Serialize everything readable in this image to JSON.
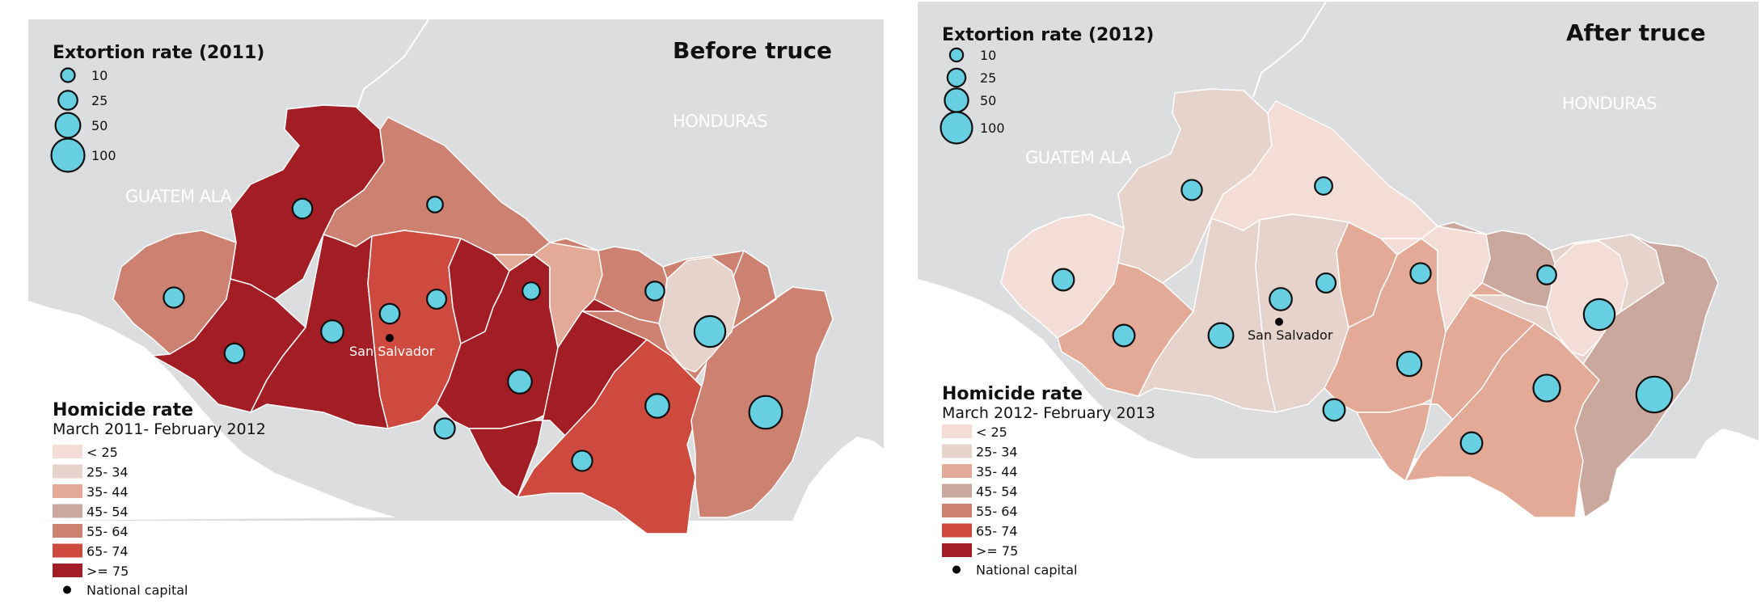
{
  "colors": {
    "background_land": "#dcdddf",
    "sea": "#ffffff",
    "bubble_fill": "#67cfe2",
    "bubble_stroke": "#111111",
    "capital_dot": "#000000"
  },
  "bubble_legend_values": [
    10,
    25,
    50,
    100
  ],
  "homicide_classes": [
    {
      "label": "< 25",
      "color": "#f3ddd6"
    },
    {
      "label": "25- 34",
      "color": "#e6d3cc"
    },
    {
      "label": "35- 44",
      "color": "#e4aa98"
    },
    {
      "label": "45- 54",
      "color": "#cba89d"
    },
    {
      "label": "55- 64",
      "color": "#cd8170"
    },
    {
      "label": "65- 74",
      "color": "#cf4a3e"
    },
    {
      "label": ">= 75",
      "color": "#a31e24"
    }
  ],
  "national_capital_label": "National capital",
  "panels": [
    {
      "title": "Before truce",
      "extortion_title": "Extortion rate (2011)",
      "homicide_title": "Homicide rate",
      "homicide_period": "March 2011- February 2012",
      "countries": {
        "guatemala": "GUATEM ALA",
        "honduras": "HONDURAS"
      },
      "capital": "San Salvador",
      "region_classes": [
        4,
        6,
        6,
        4,
        6,
        5,
        6,
        6,
        2,
        4,
        6,
        5,
        4,
        1,
        4
      ],
      "bubble_values": [
        30,
        15,
        28,
        28,
        26,
        28,
        38,
        45,
        30,
        85,
        30,
        45,
        20,
        98,
        25
      ]
    },
    {
      "title": "After truce",
      "extortion_title": "Extortion rate (2012)",
      "homicide_title": "Homicide rate",
      "homicide_period": "March 2012- February 2013",
      "countries": {
        "guatemala": "GUATEM ALA",
        "honduras": "HONDURAS"
      },
      "capital": "San Salvador",
      "region_classes": [
        0,
        1,
        0,
        2,
        1,
        1,
        2,
        2,
        0,
        3,
        2,
        2,
        1,
        0,
        3
      ],
      "bubble_values": [
        35,
        20,
        35,
        30,
        26,
        38,
        50,
        48,
        35,
        85,
        35,
        60,
        30,
        120,
        25
      ]
    }
  ]
}
